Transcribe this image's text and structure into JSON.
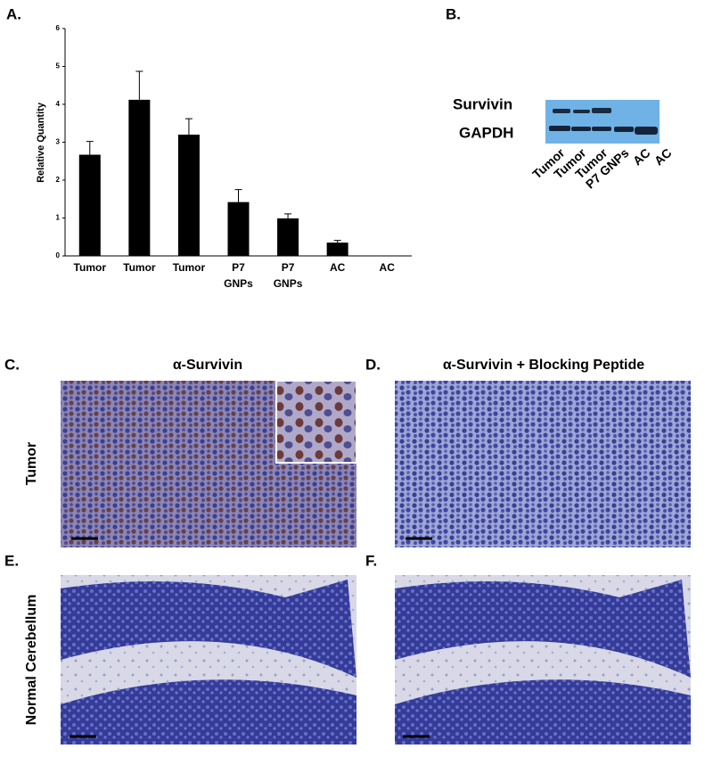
{
  "chart_data": {
    "type": "bar",
    "panel_label": "A.",
    "y_label": "Relative Quantity",
    "categories": [
      "Tumor",
      "Tumor",
      "Tumor",
      "P7 GNPs",
      "P7 GNPs",
      "AC",
      "AC"
    ],
    "values": [
      2.67,
      4.12,
      3.2,
      1.42,
      0.99,
      0.35,
      0
    ],
    "errors": [
      0.35,
      0.75,
      0.42,
      0.33,
      0.12,
      0.06,
      null
    ],
    "color": "#000000",
    "ylim": [
      0,
      6
    ],
    "yticks": [
      0,
      1,
      2,
      3,
      4,
      5,
      6
    ]
  },
  "blot": {
    "panel_label": "B.",
    "bands": [
      "Survivin",
      "GAPDH"
    ],
    "lanes": [
      "Tumor",
      "Tumor",
      "Tumor",
      "P7 GNPs",
      "AC",
      "AC"
    ]
  },
  "micrographs": {
    "columns": [
      "α-Survivin",
      "α-Survivin + Blocking Peptide"
    ],
    "rows": [
      "Tumor",
      "Normal Cerebellum"
    ],
    "panel_labels": [
      "C.",
      "D.",
      "E.",
      "F."
    ]
  }
}
